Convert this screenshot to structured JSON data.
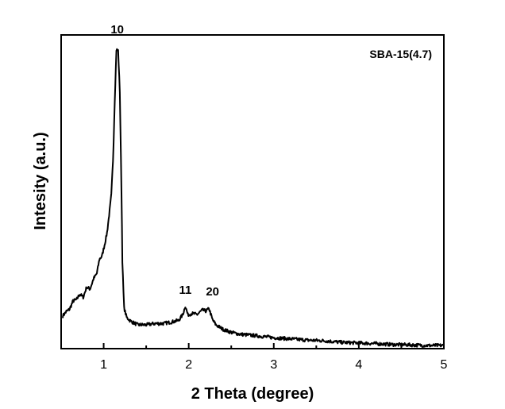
{
  "chart_data": {
    "type": "line",
    "title": "",
    "sample_label": "SBA-15(4.7)",
    "xlabel": "2 Theta (degree)",
    "ylabel": "Intesity (a.u.)",
    "xlim": [
      0.5,
      5
    ],
    "ylim": [
      0,
      100
    ],
    "y_tick_labels": false,
    "grid": false,
    "x_ticks": [
      {
        "value": 1,
        "label": "1"
      },
      {
        "value": 2,
        "label": "2"
      },
      {
        "value": 3,
        "label": "3"
      },
      {
        "value": 4,
        "label": "4"
      },
      {
        "value": 5,
        "label": "5"
      }
    ],
    "series": [
      {
        "color": "#000000",
        "points": [
          [
            0.52,
            10.5
          ],
          [
            0.56,
            11.8
          ],
          [
            0.6,
            12.6
          ],
          [
            0.64,
            15.2
          ],
          [
            0.68,
            15.6
          ],
          [
            0.72,
            17.4
          ],
          [
            0.76,
            16.4
          ],
          [
            0.8,
            19.6
          ],
          [
            0.84,
            19.0
          ],
          [
            0.88,
            22.2
          ],
          [
            0.92,
            24.0
          ],
          [
            0.95,
            28.5
          ],
          [
            0.98,
            29.5
          ],
          [
            1.01,
            33.0
          ],
          [
            1.04,
            37.0
          ],
          [
            1.07,
            44.0
          ],
          [
            1.09,
            49.0
          ],
          [
            1.11,
            60.0
          ],
          [
            1.13,
            79.0
          ],
          [
            1.15,
            95.3
          ],
          [
            1.17,
            95.0
          ],
          [
            1.19,
            82.0
          ],
          [
            1.21,
            50.0
          ],
          [
            1.22,
            28.0
          ],
          [
            1.24,
            13.0
          ],
          [
            1.27,
            10.0
          ],
          [
            1.32,
            8.7
          ],
          [
            1.4,
            7.6
          ],
          [
            1.5,
            7.6
          ],
          [
            1.6,
            8.0
          ],
          [
            1.7,
            8.0
          ],
          [
            1.8,
            8.5
          ],
          [
            1.88,
            9.0
          ],
          [
            1.93,
            10.8
          ],
          [
            1.96,
            13.6
          ],
          [
            1.99,
            10.8
          ],
          [
            2.04,
            11.2
          ],
          [
            2.1,
            10.9
          ],
          [
            2.16,
            12.3
          ],
          [
            2.2,
            12.0
          ],
          [
            2.24,
            12.7
          ],
          [
            2.28,
            9.2
          ],
          [
            2.32,
            7.6
          ],
          [
            2.4,
            6.2
          ],
          [
            2.5,
            5.2
          ],
          [
            2.6,
            4.6
          ],
          [
            2.8,
            4.1
          ],
          [
            3.0,
            3.5
          ],
          [
            3.2,
            3.1
          ],
          [
            3.4,
            2.7
          ],
          [
            3.6,
            2.5
          ],
          [
            3.8,
            2.0
          ],
          [
            4.0,
            1.8
          ],
          [
            4.2,
            1.6
          ],
          [
            4.4,
            1.3
          ],
          [
            4.6,
            1.2
          ],
          [
            4.8,
            1.0
          ],
          [
            5.0,
            1.0
          ]
        ]
      }
    ],
    "annotations": [
      {
        "text": "10",
        "x": 1.16,
        "y": 100.5
      },
      {
        "text": "11",
        "x": 1.96,
        "y": 17.5
      },
      {
        "text": "20",
        "x": 2.28,
        "y": 17.0
      }
    ]
  }
}
